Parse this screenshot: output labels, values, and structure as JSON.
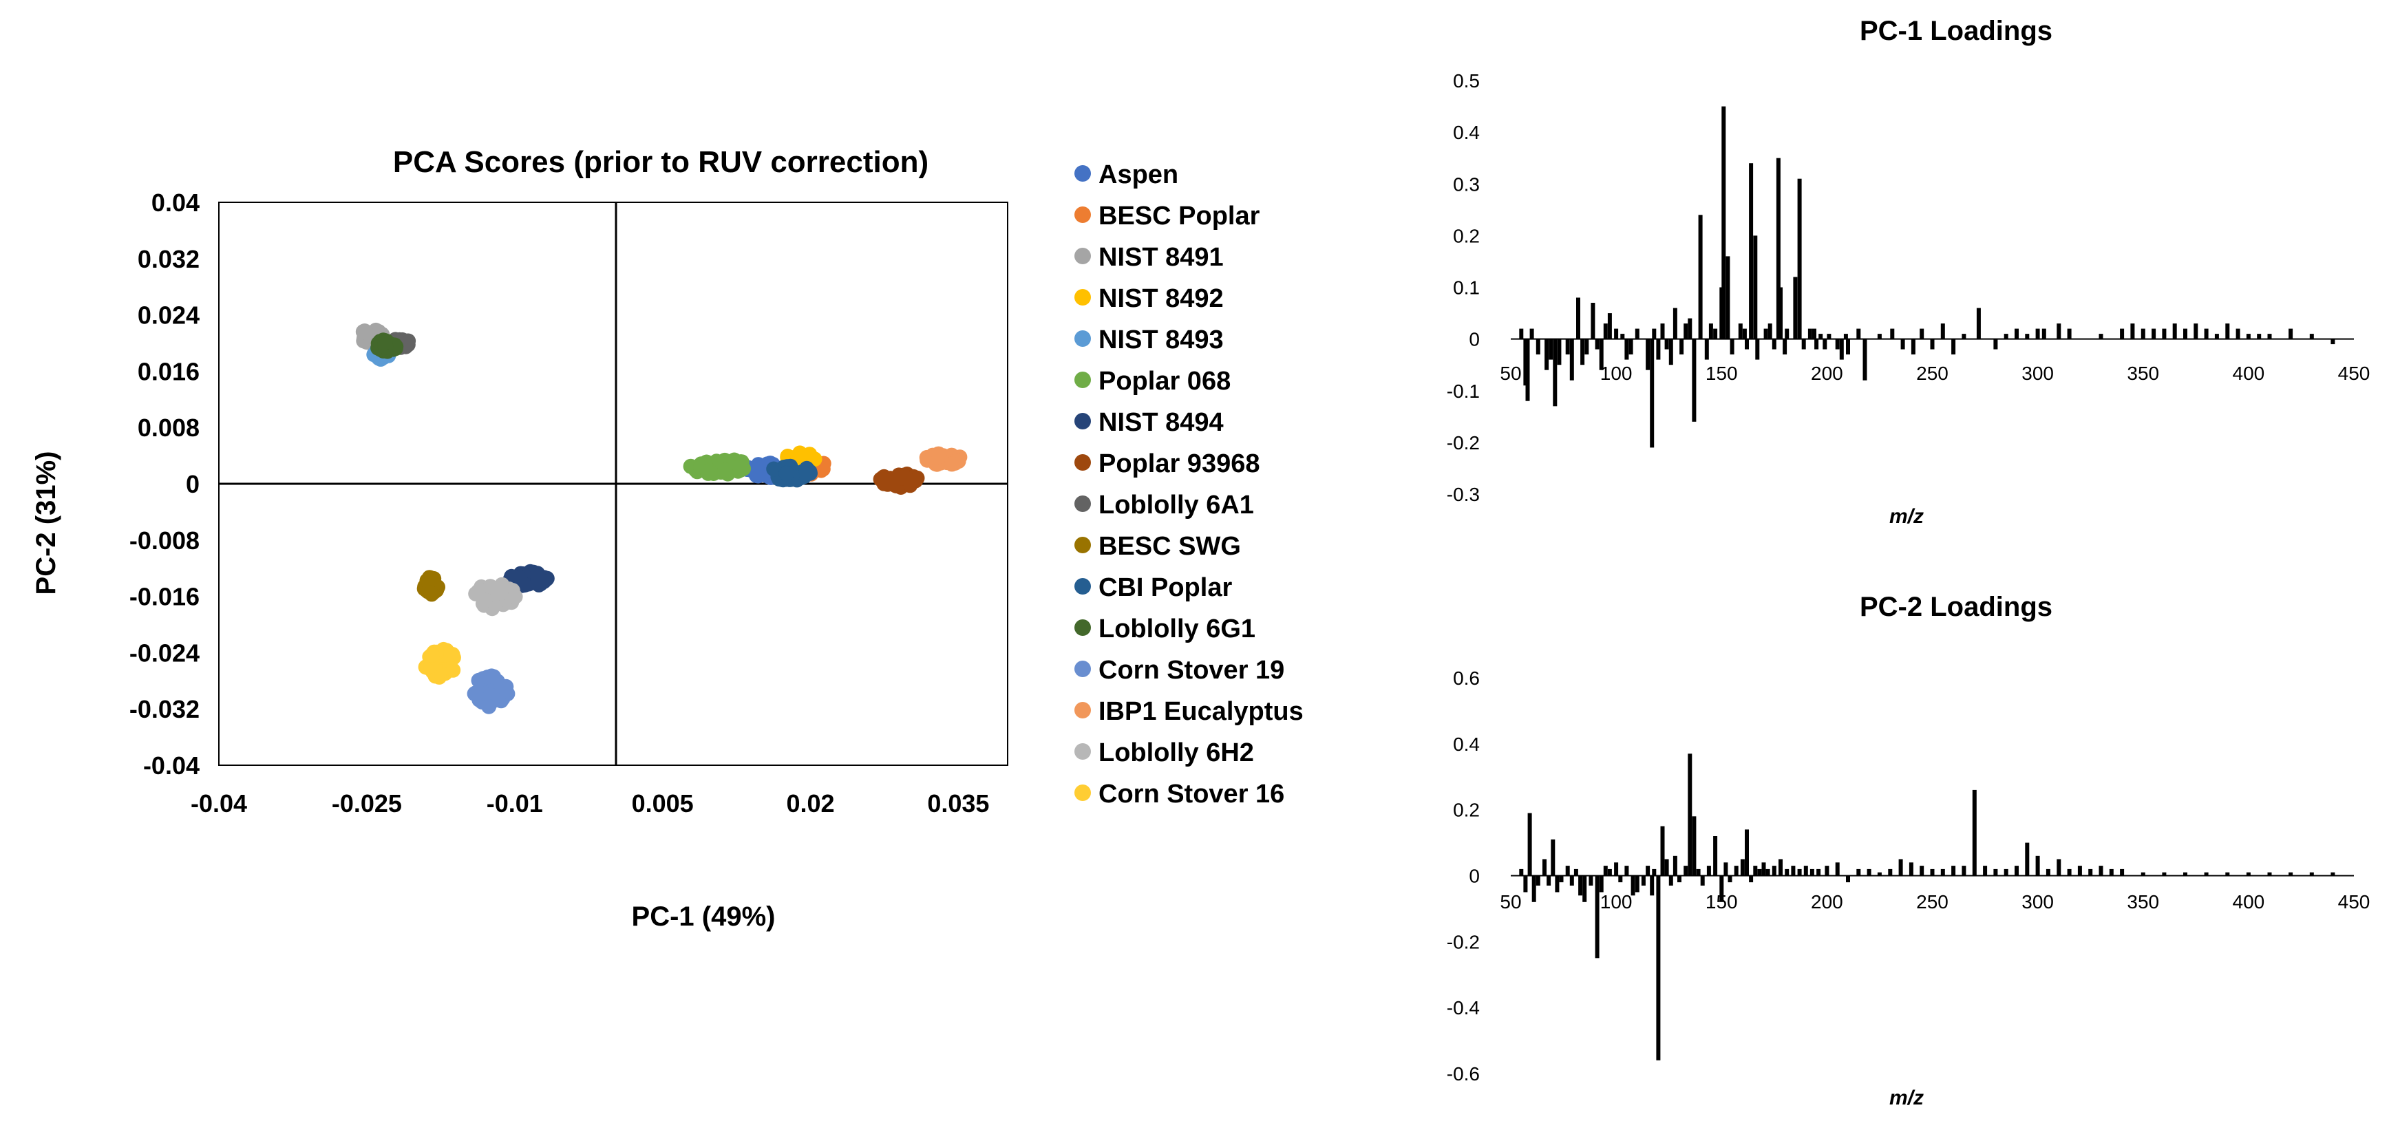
{
  "chart_data": [
    {
      "type": "scatter",
      "title": "PCA Scores (prior to RUV correction)",
      "xlabel": "PC-1 (49%)",
      "ylabel": "PC-2 (31%)",
      "xlim": [
        -0.04,
        0.04
      ],
      "ylim": [
        -0.04,
        0.04
      ],
      "xticks": [
        "-0.04",
        "-0.025",
        "-0.01",
        "0.005",
        "0.02",
        "0.035"
      ],
      "yticks": [
        "0.04",
        "0.032",
        "0.024",
        "0.016",
        "0.008",
        "0",
        "-0.008",
        "-0.016",
        "-0.024",
        "-0.032",
        "-0.04"
      ],
      "legend_position": "right",
      "series": [
        {
          "name": "Aspen",
          "color": "#4472C4",
          "center": [
            0.017,
            0.002
          ],
          "spread": [
            0.0035,
            0.0012
          ]
        },
        {
          "name": "BESC Poplar",
          "color": "#ED7D31",
          "center": [
            0.0195,
            0.0025
          ],
          "spread": [
            0.002,
            0.0012
          ]
        },
        {
          "name": "NIST 8491",
          "color": "#A5A5A5",
          "center": [
            -0.0245,
            0.021
          ],
          "spread": [
            0.0012,
            0.001
          ]
        },
        {
          "name": "NIST 8492",
          "color": "#FFC000",
          "center": [
            0.019,
            0.0035
          ],
          "spread": [
            0.0015,
            0.001
          ]
        },
        {
          "name": "NIST 8493",
          "color": "#5B9BD5",
          "center": [
            -0.0235,
            0.0185
          ],
          "spread": [
            0.0008,
            0.0008
          ]
        },
        {
          "name": "Poplar 068",
          "color": "#70AD47",
          "center": [
            0.0105,
            0.0025
          ],
          "spread": [
            0.003,
            0.0012
          ]
        },
        {
          "name": "NIST 8494",
          "color": "#264478",
          "center": [
            -0.0085,
            -0.0135
          ],
          "spread": [
            0.0022,
            0.001
          ]
        },
        {
          "name": "Poplar 93968",
          "color": "#9E480E",
          "center": [
            0.029,
            0.0005
          ],
          "spread": [
            0.002,
            0.001
          ]
        },
        {
          "name": "Loblolly 6A1",
          "color": "#636363",
          "center": [
            -0.0215,
            0.02
          ],
          "spread": [
            0.0008,
            0.0008
          ]
        },
        {
          "name": "BESC SWG",
          "color": "#997300",
          "center": [
            -0.0185,
            -0.0145
          ],
          "spread": [
            0.0008,
            0.0012
          ]
        },
        {
          "name": "CBI Poplar",
          "color": "#255E91",
          "center": [
            0.018,
            0.0015
          ],
          "spread": [
            0.002,
            0.0012
          ]
        },
        {
          "name": "Loblolly 6G1",
          "color": "#43682B",
          "center": [
            -0.023,
            0.0195
          ],
          "spread": [
            0.001,
            0.001
          ]
        },
        {
          "name": "Corn Stover 19",
          "color": "#698ED0",
          "center": [
            -0.0125,
            -0.0295
          ],
          "spread": [
            0.0018,
            0.0022
          ]
        },
        {
          "name": "IBP1 Eucalyptus",
          "color": "#F1975A",
          "center": [
            0.0335,
            0.0035
          ],
          "spread": [
            0.0018,
            0.0008
          ]
        },
        {
          "name": "Loblolly 6H2",
          "color": "#B7B7B7",
          "center": [
            -0.012,
            -0.016
          ],
          "spread": [
            0.0022,
            0.0018
          ]
        },
        {
          "name": "Corn Stover 16",
          "color": "#FFCD33",
          "center": [
            -0.0175,
            -0.0255
          ],
          "spread": [
            0.0016,
            0.002
          ]
        }
      ]
    },
    {
      "type": "bar",
      "title": "PC-1 Loadings",
      "xlabel": "m/z",
      "xlim": [
        50,
        450
      ],
      "ylim": [
        -0.3,
        0.5
      ],
      "xticks": [
        "50",
        "100",
        "150",
        "200",
        "250",
        "300",
        "350",
        "400",
        "450"
      ],
      "yticks": [
        "0.5",
        "0.4",
        "0.3",
        "0.2",
        "0.1",
        "0",
        "-0.1",
        "-0.2",
        "-0.3"
      ],
      "x": [
        55,
        57,
        58,
        60,
        63,
        67,
        69,
        71,
        73,
        77,
        79,
        82,
        84,
        86,
        89,
        91,
        93,
        95,
        97,
        100,
        103,
        105,
        107,
        110,
        115,
        117,
        118,
        120,
        122,
        124,
        126,
        128,
        131,
        133,
        135,
        137,
        140,
        143,
        145,
        147,
        150,
        151,
        153,
        155,
        159,
        161,
        162,
        164,
        166,
        167,
        171,
        173,
        175,
        177,
        178,
        180,
        181,
        185,
        187,
        189,
        192,
        194,
        195,
        197,
        199,
        201,
        205,
        207,
        209,
        210,
        215,
        218,
        225,
        231,
        236,
        241,
        245,
        250,
        255,
        260,
        265,
        272,
        280,
        285,
        290,
        295,
        300,
        303,
        310,
        315,
        330,
        340,
        345,
        350,
        355,
        360,
        365,
        370,
        375,
        380,
        385,
        390,
        395,
        400,
        405,
        410,
        420,
        430,
        440
      ],
      "values": [
        0.02,
        -0.09,
        -0.12,
        0.02,
        -0.03,
        -0.06,
        -0.04,
        -0.13,
        -0.05,
        -0.03,
        -0.08,
        0.08,
        -0.05,
        -0.03,
        0.07,
        -0.02,
        -0.06,
        0.03,
        0.05,
        0.02,
        0.01,
        -0.04,
        -0.03,
        0.02,
        -0.06,
        -0.21,
        0.02,
        -0.04,
        0.03,
        -0.02,
        -0.05,
        0.06,
        -0.03,
        0.03,
        0.04,
        -0.16,
        0.24,
        -0.04,
        0.03,
        0.02,
        0.1,
        0.45,
        0.16,
        -0.03,
        0.03,
        0.02,
        -0.02,
        0.34,
        0.2,
        -0.04,
        0.02,
        0.03,
        -0.02,
        0.35,
        0.1,
        -0.03,
        0.02,
        0.12,
        0.31,
        -0.02,
        0.02,
        0.02,
        -0.02,
        0.01,
        -0.02,
        0.01,
        -0.02,
        -0.04,
        0.01,
        -0.03,
        0.02,
        -0.08,
        0.01,
        0.02,
        -0.02,
        -0.03,
        0.02,
        -0.02,
        0.03,
        -0.03,
        0.01,
        0.06,
        -0.02,
        0.01,
        0.02,
        0.01,
        0.02,
        0.02,
        0.03,
        0.02,
        0.01,
        0.02,
        0.03,
        0.02,
        0.02,
        0.02,
        0.03,
        0.02,
        0.03,
        0.02,
        0.01,
        0.03,
        0.02,
        0.01,
        0.01,
        0.01,
        0.02,
        0.01,
        -0.01
      ]
    },
    {
      "type": "bar",
      "title": "PC-2 Loadings",
      "xlabel": "m/z",
      "xlim": [
        50,
        450
      ],
      "ylim": [
        -0.6,
        0.6
      ],
      "xticks": [
        "50",
        "100",
        "150",
        "200",
        "250",
        "300",
        "350",
        "400",
        "450"
      ],
      "yticks": [
        "0.6",
        "0.4",
        "0.2",
        "0",
        "-0.2",
        "-0.4",
        "-0.6"
      ],
      "x": [
        55,
        57,
        59,
        61,
        63,
        66,
        68,
        70,
        72,
        74,
        77,
        79,
        81,
        83,
        85,
        88,
        91,
        93,
        95,
        97,
        100,
        102,
        105,
        108,
        110,
        113,
        115,
        117,
        118,
        120,
        122,
        124,
        126,
        128,
        130,
        133,
        135,
        137,
        139,
        141,
        144,
        147,
        150,
        152,
        154,
        157,
        160,
        162,
        164,
        166,
        168,
        170,
        172,
        175,
        178,
        181,
        184,
        187,
        190,
        193,
        196,
        200,
        205,
        210,
        215,
        220,
        225,
        230,
        235,
        240,
        245,
        250,
        255,
        260,
        265,
        270,
        275,
        280,
        285,
        290,
        295,
        300,
        305,
        310,
        315,
        320,
        325,
        330,
        335,
        340,
        350,
        360,
        370,
        380,
        390,
        400,
        410,
        420,
        430,
        440
      ],
      "values": [
        0.02,
        -0.05,
        0.19,
        -0.08,
        -0.03,
        0.05,
        -0.03,
        0.11,
        -0.05,
        -0.02,
        0.03,
        -0.03,
        0.02,
        -0.06,
        -0.08,
        -0.03,
        -0.25,
        -0.05,
        0.03,
        0.02,
        0.04,
        -0.02,
        0.03,
        -0.06,
        -0.05,
        -0.03,
        0.03,
        -0.06,
        0.02,
        -0.56,
        0.15,
        0.05,
        -0.03,
        0.06,
        -0.02,
        0.03,
        0.37,
        0.18,
        0.02,
        -0.03,
        0.03,
        0.12,
        -0.08,
        0.04,
        -0.02,
        0.03,
        0.05,
        0.14,
        -0.02,
        0.03,
        0.02,
        0.04,
        0.02,
        0.03,
        0.05,
        0.02,
        0.03,
        0.02,
        0.03,
        0.02,
        0.02,
        0.03,
        0.04,
        -0.02,
        0.02,
        0.02,
        0.01,
        0.02,
        0.05,
        0.04,
        0.03,
        0.02,
        0.02,
        0.03,
        0.03,
        0.26,
        0.03,
        0.02,
        0.02,
        0.03,
        0.1,
        0.06,
        0.02,
        0.05,
        0.02,
        0.03,
        0.02,
        0.03,
        0.02,
        0.02,
        0.01,
        0.01,
        0.01,
        0.01,
        0.01,
        0.01,
        0.01,
        0.01,
        0.01,
        0.01
      ]
    }
  ]
}
